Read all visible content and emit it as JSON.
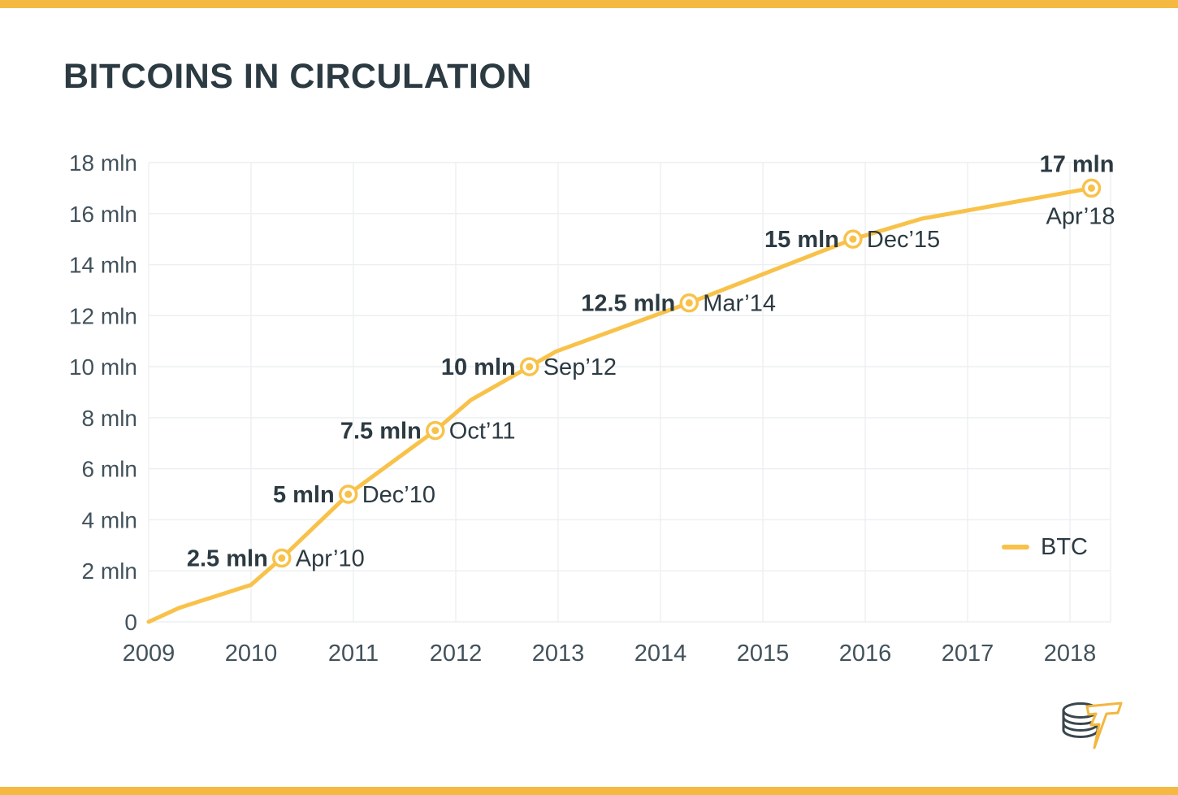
{
  "title": "BITCOINS IN CIRCULATION",
  "colors": {
    "accent_bar": "#F5B941",
    "line": "#F8C24A",
    "dark_text": "#2C3A42",
    "axis_text": "#42525B",
    "grid": "#ECEFF1"
  },
  "legend": {
    "label": "BTC"
  },
  "logo": {
    "name": "coin-stack-lightning-logo"
  },
  "chart_data": {
    "type": "line",
    "title": "BITCOINS IN CIRCULATION",
    "xlabel": "",
    "ylabel": "",
    "xlim": [
      2009,
      2018.4
    ],
    "ylim": [
      0,
      18
    ],
    "grid": true,
    "legend_position": "right",
    "x_ticks": [
      "2009",
      "2010",
      "2011",
      "2012",
      "2013",
      "2014",
      "2015",
      "2016",
      "2017",
      "2018"
    ],
    "x_tick_values": [
      2009,
      2010,
      2011,
      2012,
      2013,
      2014,
      2015,
      2016,
      2017,
      2018
    ],
    "y_ticks": [
      "0",
      "2 mln",
      "4 mln",
      "6 mln",
      "8 mln",
      "10 mln",
      "12 mln",
      "14 mln",
      "16 mln",
      "18 mln"
    ],
    "y_tick_values": [
      0,
      2,
      4,
      6,
      8,
      10,
      12,
      14,
      16,
      18
    ],
    "series": [
      {
        "name": "BTC",
        "color": "#F8C24A",
        "points": [
          [
            2009.0,
            0
          ],
          [
            2009.3,
            0.55
          ],
          [
            2009.65,
            1.0
          ],
          [
            2010.0,
            1.45
          ],
          [
            2010.3,
            2.5
          ],
          [
            2010.95,
            5.0
          ],
          [
            2011.8,
            7.5
          ],
          [
            2012.15,
            8.7
          ],
          [
            2012.72,
            10.0
          ],
          [
            2012.98,
            10.6
          ],
          [
            2014.28,
            12.5
          ],
          [
            2015.88,
            15.0
          ],
          [
            2016.55,
            15.8
          ],
          [
            2018.21,
            17.0
          ]
        ]
      }
    ],
    "milestones": [
      {
        "x": 2010.3,
        "y": 2.5,
        "value_label": "2.5 mln",
        "date_label": "Apr’10",
        "placement": "side"
      },
      {
        "x": 2010.95,
        "y": 5.0,
        "value_label": "5 mln",
        "date_label": "Dec’10",
        "placement": "side"
      },
      {
        "x": 2011.8,
        "y": 7.5,
        "value_label": "7.5 mln",
        "date_label": "Oct’11",
        "placement": "side"
      },
      {
        "x": 2012.72,
        "y": 10.0,
        "value_label": "10 mln",
        "date_label": "Sep’12",
        "placement": "side"
      },
      {
        "x": 2014.28,
        "y": 12.5,
        "value_label": "12.5 mln",
        "date_label": "Mar’14",
        "placement": "side"
      },
      {
        "x": 2015.88,
        "y": 15.0,
        "value_label": "15 mln",
        "date_label": "Dec’15",
        "placement": "side"
      },
      {
        "x": 2018.21,
        "y": 17.0,
        "value_label": "17 mln",
        "date_label": "Apr’18",
        "placement": "stack"
      }
    ]
  }
}
